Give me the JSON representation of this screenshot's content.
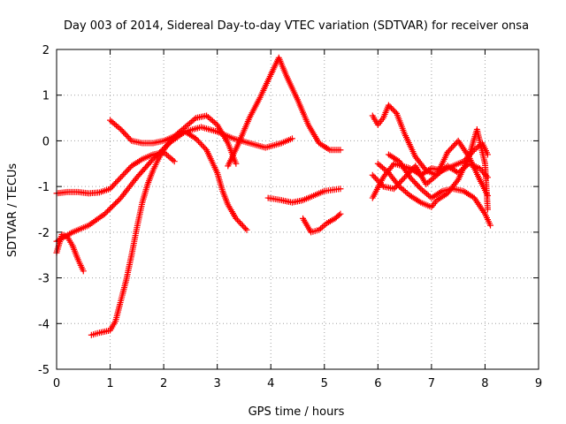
{
  "chart_data": {
    "type": "scatter",
    "title": "Day 003 of 2014, Sidereal Day-to-day VTEC variation (SDTVAR) for receiver onsa",
    "xlabel": "GPS time / hours",
    "ylabel": "SDTVAR / TECUs",
    "xlim": [
      0,
      9
    ],
    "ylim": [
      -5,
      2
    ],
    "xticks": [
      "0",
      "1",
      "2",
      "3",
      "4",
      "5",
      "6",
      "7",
      "8",
      "9"
    ],
    "yticks": [
      "-5",
      "-4",
      "-3",
      "-2",
      "-1",
      "0",
      "1",
      "2"
    ],
    "grid": true,
    "marker": "+",
    "color": "#ff0000",
    "series": [
      {
        "x": [
          0.0,
          0.2,
          0.4,
          0.6,
          0.8,
          1.0,
          1.2,
          1.4,
          1.6,
          1.8,
          2.0,
          2.2
        ],
        "y": [
          -1.15,
          -1.12,
          -1.12,
          -1.15,
          -1.13,
          -1.05,
          -0.8,
          -0.55,
          -0.4,
          -0.3,
          -0.25,
          -0.45
        ]
      },
      {
        "x": [
          0.0,
          0.1,
          0.2,
          0.3,
          0.4,
          0.5
        ],
        "y": [
          -2.45,
          -2.05,
          -2.1,
          -2.3,
          -2.6,
          -2.85
        ]
      },
      {
        "x": [
          0.0,
          0.3,
          0.6,
          0.9,
          1.2,
          1.5,
          1.8,
          2.1,
          2.4,
          2.7,
          3.0,
          3.3,
          3.6,
          3.9,
          4.2,
          4.4
        ],
        "y": [
          -2.2,
          -2.0,
          -1.85,
          -1.6,
          -1.25,
          -0.8,
          -0.4,
          -0.05,
          0.2,
          0.3,
          0.2,
          0.05,
          -0.05,
          -0.15,
          -0.05,
          0.05
        ]
      },
      {
        "x": [
          1.0,
          1.2,
          1.4,
          1.6,
          1.8,
          2.0,
          2.2,
          2.4,
          2.6,
          2.8,
          3.0,
          3.1,
          3.2,
          3.35,
          3.55
        ],
        "y": [
          0.45,
          0.25,
          0.0,
          -0.05,
          -0.05,
          0.0,
          0.1,
          0.2,
          0.05,
          -0.2,
          -0.7,
          -1.1,
          -1.4,
          -1.7,
          -1.95
        ]
      },
      {
        "x": [
          0.65,
          0.8,
          1.0,
          1.1,
          1.2,
          1.3,
          1.4,
          1.5,
          1.6,
          1.7,
          1.8,
          1.9,
          2.0,
          2.2,
          2.4,
          2.6,
          2.8,
          3.0,
          3.2,
          3.35
        ],
        "y": [
          -4.25,
          -4.2,
          -4.15,
          -3.95,
          -3.5,
          -3.05,
          -2.5,
          -1.9,
          -1.35,
          -0.95,
          -0.65,
          -0.4,
          -0.2,
          0.1,
          0.3,
          0.5,
          0.55,
          0.35,
          -0.05,
          -0.5
        ]
      },
      {
        "x": [
          3.2,
          3.4,
          3.6,
          3.8,
          4.0,
          4.15,
          4.3,
          4.5,
          4.7,
          4.9,
          5.1,
          5.3
        ],
        "y": [
          -0.55,
          -0.05,
          0.5,
          0.95,
          1.45,
          1.82,
          1.4,
          0.9,
          0.35,
          -0.05,
          -0.2,
          -0.2
        ]
      },
      {
        "x": [
          3.95,
          4.2,
          4.4,
          4.6,
          4.8,
          5.0,
          5.3
        ],
        "y": [
          -1.25,
          -1.3,
          -1.35,
          -1.3,
          -1.2,
          -1.1,
          -1.05
        ]
      },
      {
        "x": [
          4.6,
          4.75,
          4.9,
          5.05,
          5.2,
          5.3
        ],
        "y": [
          -1.7,
          -2.0,
          -1.95,
          -1.8,
          -1.7,
          -1.6
        ]
      },
      {
        "x": [
          5.9,
          6.0,
          6.1,
          6.2,
          6.35,
          6.5,
          6.7,
          6.9,
          7.1,
          7.3,
          7.5,
          7.7,
          7.9,
          8.05
        ],
        "y": [
          0.55,
          0.35,
          0.5,
          0.78,
          0.6,
          0.15,
          -0.35,
          -0.65,
          -0.75,
          -0.55,
          -0.7,
          -0.5,
          -0.6,
          -0.8
        ]
      },
      {
        "x": [
          5.9,
          6.1,
          6.3,
          6.5,
          6.7,
          6.9,
          7.1,
          7.3,
          7.5,
          7.7,
          7.9,
          8.05
        ],
        "y": [
          -0.75,
          -1.0,
          -1.05,
          -0.8,
          -0.55,
          -0.95,
          -0.75,
          -0.25,
          0.0,
          -0.35,
          -0.85,
          -1.2
        ]
      },
      {
        "x": [
          5.9,
          6.1,
          6.3,
          6.6,
          6.8,
          7.0,
          7.2,
          7.4,
          7.6,
          7.8,
          7.95,
          8.05
        ],
        "y": [
          -1.25,
          -0.8,
          -0.5,
          -0.6,
          -0.75,
          -0.6,
          -0.65,
          -0.55,
          -0.45,
          -0.2,
          -0.05,
          -0.3
        ]
      },
      {
        "x": [
          6.0,
          6.2,
          6.4,
          6.6,
          6.8,
          7.0,
          7.1,
          7.3,
          7.5,
          7.7,
          7.85,
          8.0,
          8.05
        ],
        "y": [
          -0.5,
          -0.7,
          -1.0,
          -1.2,
          -1.35,
          -1.45,
          -1.3,
          -1.15,
          -0.85,
          -0.35,
          0.25,
          -0.5,
          -1.5
        ]
      },
      {
        "x": [
          6.2,
          6.4,
          6.6,
          6.8,
          7.0,
          7.2,
          7.4,
          7.6,
          7.8,
          8.0,
          8.1
        ],
        "y": [
          -0.3,
          -0.45,
          -0.8,
          -1.05,
          -1.25,
          -1.1,
          -1.05,
          -1.1,
          -1.25,
          -1.6,
          -1.85
        ]
      }
    ]
  }
}
